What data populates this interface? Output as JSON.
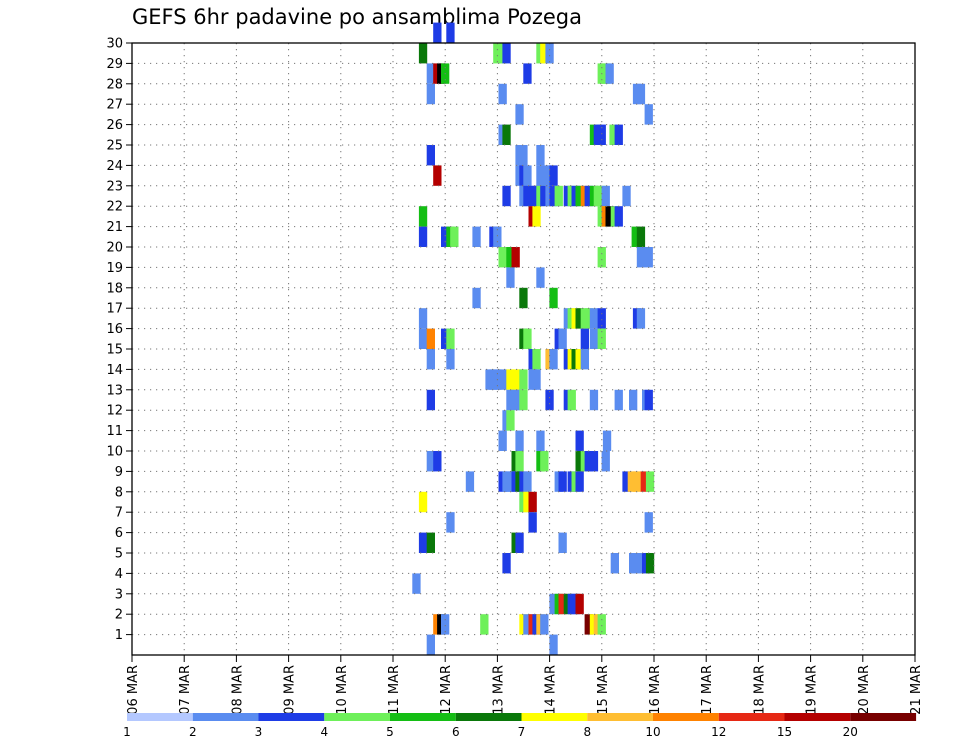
{
  "chart_data": {
    "type": "heatmap",
    "title": "GEFS 6hr padavine po ansamblima Pozega",
    "xlabel": "",
    "ylabel": "",
    "x_tick_labels": [
      "06 MAR",
      "07 MAR",
      "08 MAR",
      "09 MAR",
      "10 MAR",
      "11 MAR",
      "12 MAR",
      "13 MAR",
      "14 MAR",
      "15 MAR",
      "16 MAR",
      "17 MAR",
      "18 MAR",
      "19 MAR",
      "20 MAR",
      "21 MAR"
    ],
    "xlim": [
      0,
      60
    ],
    "y_tick_labels": [
      "1",
      "2",
      "3",
      "4",
      "5",
      "6",
      "7",
      "8",
      "9",
      "10",
      "11",
      "12",
      "13",
      "14",
      "15",
      "16",
      "17",
      "18",
      "19",
      "20",
      "21",
      "22",
      "23",
      "24",
      "25",
      "26",
      "27",
      "28",
      "29",
      "30"
    ],
    "ylim": [
      0,
      30
    ],
    "grid": true,
    "legend": {
      "placement": "bottom",
      "levels": [
        "1",
        "2",
        "3",
        "4",
        "5",
        "6",
        "7",
        "8",
        "10",
        "12",
        "15",
        "20"
      ],
      "colors": [
        "#b4c8ff",
        "#5a8cf0",
        "#1e3ce6",
        "#6ef05a",
        "#14be14",
        "#0a780a",
        "#ffff00",
        "#ffbe32",
        "#ff8200",
        "#e62814",
        "#b40000",
        "#780000"
      ]
    },
    "cells": [
      [
        23.4,
        30,
        2
      ],
      [
        24.4,
        30,
        2
      ],
      [
        22.3,
        29,
        5
      ],
      [
        28.0,
        29,
        3
      ],
      [
        28.4,
        29,
        3
      ],
      [
        28.7,
        29,
        2
      ],
      [
        31.3,
        29,
        3
      ],
      [
        31.6,
        29,
        6
      ],
      [
        32.0,
        29,
        1
      ],
      [
        22.9,
        28,
        1
      ],
      [
        23.4,
        28,
        10
      ],
      [
        23.7,
        28,
        12
      ],
      [
        24.0,
        28,
        4
      ],
      [
        30.3,
        28,
        2
      ],
      [
        36.0,
        28,
        3
      ],
      [
        36.3,
        28,
        3
      ],
      [
        36.6,
        28,
        1
      ],
      [
        22.9,
        27,
        1
      ],
      [
        28.4,
        27,
        1
      ],
      [
        38.7,
        27,
        1
      ],
      [
        39.0,
        27,
        1
      ],
      [
        29.7,
        26,
        1
      ],
      [
        39.6,
        26,
        1
      ],
      [
        28.4,
        25,
        1
      ],
      [
        28.7,
        25,
        5
      ],
      [
        35.4,
        25,
        4
      ],
      [
        35.7,
        25,
        2
      ],
      [
        36.0,
        25,
        2
      ],
      [
        36.9,
        25,
        3
      ],
      [
        37.3,
        25,
        2
      ],
      [
        22.9,
        24,
        2
      ],
      [
        29.7,
        24,
        1
      ],
      [
        30.0,
        24,
        1
      ],
      [
        31.3,
        24,
        1
      ],
      [
        23.4,
        23,
        10
      ],
      [
        29.7,
        23,
        1
      ],
      [
        30.0,
        23,
        2
      ],
      [
        30.3,
        23,
        1
      ],
      [
        31.3,
        23,
        1
      ],
      [
        31.6,
        23,
        1
      ],
      [
        32.0,
        23,
        1
      ],
      [
        32.3,
        23,
        2
      ],
      [
        28.7,
        22,
        2
      ],
      [
        30.0,
        22,
        1
      ],
      [
        30.3,
        22,
        2
      ],
      [
        30.7,
        22,
        2
      ],
      [
        31.0,
        22,
        2
      ],
      [
        31.3,
        22,
        3
      ],
      [
        31.6,
        22,
        2
      ],
      [
        32.0,
        22,
        1
      ],
      [
        32.3,
        22,
        2
      ],
      [
        32.7,
        22,
        3
      ],
      [
        33.4,
        22,
        2
      ],
      [
        33.7,
        22,
        3
      ],
      [
        34.0,
        22,
        2
      ],
      [
        34.3,
        22,
        4
      ],
      [
        34.7,
        22,
        8
      ],
      [
        35.0,
        22,
        2
      ],
      [
        35.4,
        22,
        4
      ],
      [
        35.7,
        22,
        3
      ],
      [
        36.0,
        22,
        3
      ],
      [
        36.3,
        22,
        1
      ],
      [
        37.9,
        22,
        1
      ],
      [
        22.3,
        21,
        4
      ],
      [
        30.7,
        21,
        10
      ],
      [
        31.0,
        21,
        6
      ],
      [
        36.0,
        21,
        3
      ],
      [
        36.3,
        21,
        8
      ],
      [
        36.6,
        21,
        12
      ],
      [
        37.0,
        21,
        3
      ],
      [
        37.3,
        21,
        2
      ],
      [
        22.3,
        20,
        2
      ],
      [
        24.0,
        20,
        2
      ],
      [
        24.4,
        20,
        4
      ],
      [
        24.7,
        20,
        3
      ],
      [
        26.4,
        20,
        1
      ],
      [
        27.7,
        20,
        2
      ],
      [
        28.0,
        20,
        1
      ],
      [
        38.6,
        20,
        4
      ],
      [
        39.0,
        20,
        5
      ],
      [
        28.4,
        19,
        3
      ],
      [
        29.0,
        19,
        4
      ],
      [
        29.4,
        19,
        10
      ],
      [
        36.0,
        19,
        3
      ],
      [
        39.0,
        19,
        1
      ],
      [
        39.6,
        19,
        1
      ],
      [
        29.0,
        18,
        1
      ],
      [
        31.3,
        18,
        1
      ],
      [
        30.0,
        17,
        5
      ],
      [
        26.4,
        17,
        1
      ],
      [
        32.3,
        17,
        4
      ],
      [
        22.3,
        16,
        1
      ],
      [
        33.4,
        16,
        1
      ],
      [
        33.7,
        16,
        3
      ],
      [
        34.0,
        16,
        6
      ],
      [
        34.3,
        16,
        5
      ],
      [
        34.7,
        16,
        3
      ],
      [
        35.0,
        16,
        3
      ],
      [
        35.4,
        16,
        1
      ],
      [
        36.0,
        16,
        2
      ],
      [
        38.7,
        16,
        2
      ],
      [
        39.0,
        16,
        1
      ],
      [
        22.3,
        15,
        1
      ],
      [
        22.9,
        15,
        8
      ],
      [
        24.0,
        15,
        2
      ],
      [
        24.4,
        15,
        3
      ],
      [
        30.0,
        15,
        5
      ],
      [
        30.3,
        15,
        3
      ],
      [
        32.7,
        15,
        2
      ],
      [
        33.0,
        15,
        1
      ],
      [
        34.7,
        15,
        2
      ],
      [
        35.4,
        15,
        1
      ],
      [
        36.0,
        15,
        3
      ],
      [
        22.9,
        14,
        1
      ],
      [
        24.4,
        14,
        1
      ],
      [
        30.7,
        14,
        2
      ],
      [
        31.0,
        14,
        3
      ],
      [
        32.0,
        14,
        7
      ],
      [
        32.3,
        14,
        1
      ],
      [
        33.4,
        14,
        2
      ],
      [
        33.7,
        14,
        6
      ],
      [
        34.0,
        14,
        5
      ],
      [
        34.3,
        14,
        6
      ],
      [
        34.7,
        14,
        1
      ],
      [
        27.4,
        13,
        1
      ],
      [
        27.7,
        13,
        1
      ],
      [
        28.0,
        13,
        1
      ],
      [
        28.4,
        13,
        1
      ],
      [
        29.0,
        13,
        6
      ],
      [
        29.4,
        13,
        6
      ],
      [
        29.7,
        13,
        6
      ],
      [
        30.0,
        13,
        3
      ],
      [
        30.7,
        13,
        1
      ],
      [
        31.0,
        13,
        1
      ],
      [
        22.9,
        12,
        2
      ],
      [
        29.0,
        12,
        1
      ],
      [
        29.4,
        12,
        1
      ],
      [
        29.7,
        12,
        1
      ],
      [
        30.0,
        12,
        3
      ],
      [
        32.0,
        12,
        2
      ],
      [
        33.4,
        12,
        2
      ],
      [
        33.7,
        12,
        3
      ],
      [
        35.4,
        12,
        1
      ],
      [
        37.3,
        12,
        1
      ],
      [
        38.4,
        12,
        1
      ],
      [
        39.4,
        12,
        1
      ],
      [
        39.6,
        12,
        2
      ],
      [
        28.7,
        11,
        1
      ],
      [
        29.0,
        11,
        3
      ],
      [
        28.4,
        10,
        1
      ],
      [
        29.7,
        10,
        1
      ],
      [
        31.3,
        10,
        1
      ],
      [
        34.3,
        10,
        2
      ],
      [
        36.4,
        10,
        1
      ],
      [
        22.9,
        9,
        1
      ],
      [
        23.4,
        9,
        2
      ],
      [
        29.4,
        9,
        5
      ],
      [
        29.7,
        9,
        3
      ],
      [
        31.3,
        9,
        4
      ],
      [
        31.6,
        9,
        3
      ],
      [
        34.3,
        9,
        5
      ],
      [
        34.7,
        9,
        3
      ],
      [
        35.0,
        9,
        2
      ],
      [
        35.4,
        9,
        2
      ],
      [
        36.3,
        9,
        1
      ],
      [
        25.9,
        8,
        1
      ],
      [
        28.4,
        8,
        2
      ],
      [
        28.7,
        8,
        1
      ],
      [
        29.0,
        8,
        1
      ],
      [
        29.4,
        8,
        2
      ],
      [
        29.7,
        8,
        5
      ],
      [
        30.0,
        8,
        2
      ],
      [
        30.3,
        8,
        1
      ],
      [
        32.7,
        8,
        1
      ],
      [
        33.0,
        8,
        2
      ],
      [
        33.7,
        8,
        2
      ],
      [
        34.0,
        8,
        3
      ],
      [
        34.3,
        8,
        2
      ],
      [
        37.9,
        8,
        2
      ],
      [
        38.3,
        8,
        7
      ],
      [
        38.7,
        8,
        7
      ],
      [
        39.3,
        8,
        9
      ],
      [
        39.7,
        8,
        3
      ],
      [
        22.3,
        7,
        6
      ],
      [
        30.0,
        7,
        3
      ],
      [
        30.3,
        7,
        6
      ],
      [
        30.7,
        7,
        10
      ],
      [
        24.4,
        6,
        1
      ],
      [
        30.7,
        6,
        2
      ],
      [
        39.6,
        6,
        1
      ],
      [
        22.3,
        5,
        2
      ],
      [
        22.9,
        5,
        5
      ],
      [
        29.4,
        5,
        5
      ],
      [
        29.7,
        5,
        2
      ],
      [
        33.0,
        5,
        1
      ],
      [
        28.7,
        4,
        2
      ],
      [
        37.0,
        4,
        1
      ],
      [
        38.4,
        4,
        1
      ],
      [
        39.0,
        4,
        1
      ],
      [
        39.4,
        4,
        2
      ],
      [
        39.7,
        4,
        5
      ],
      [
        21.8,
        3,
        1
      ],
      [
        32.3,
        2,
        1
      ],
      [
        32.7,
        2,
        4
      ],
      [
        33.0,
        2,
        9
      ],
      [
        33.4,
        2,
        5
      ],
      [
        33.7,
        2,
        2
      ],
      [
        34.0,
        2,
        2
      ],
      [
        34.3,
        2,
        10
      ],
      [
        23.4,
        1,
        8
      ],
      [
        23.7,
        1,
        12
      ],
      [
        24.0,
        1,
        1
      ],
      [
        27.0,
        1,
        3
      ],
      [
        30.0,
        1,
        6
      ],
      [
        30.3,
        1,
        1
      ],
      [
        30.7,
        1,
        9
      ],
      [
        31.0,
        1,
        2
      ],
      [
        31.3,
        1,
        7
      ],
      [
        31.6,
        1,
        1
      ],
      [
        35.0,
        1,
        11
      ],
      [
        35.4,
        1,
        6
      ],
      [
        35.7,
        1,
        7
      ],
      [
        36.0,
        1,
        3
      ],
      [
        22.9,
        0,
        1
      ],
      [
        32.3,
        0,
        1
      ]
    ]
  }
}
